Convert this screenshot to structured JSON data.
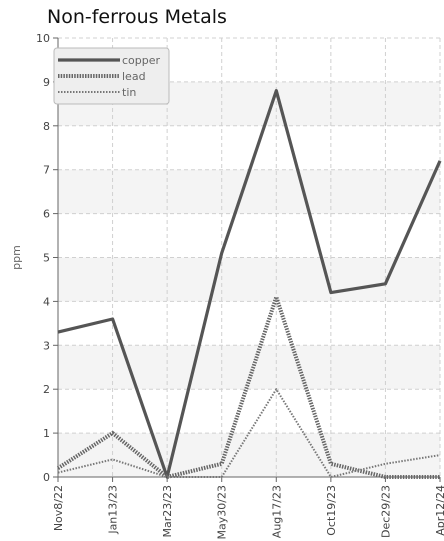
{
  "chart_data": {
    "type": "line",
    "title": "Non-ferrous Metals",
    "xlabel": "",
    "ylabel": "ppm",
    "ylim": [
      0,
      10
    ],
    "yticks": [
      0,
      1,
      2,
      3,
      4,
      5,
      6,
      7,
      8,
      9,
      10
    ],
    "categories": [
      "Nov8/22",
      "Jan13/23",
      "Mar23/23",
      "May30/23",
      "Aug17/23",
      "Oct19/23",
      "Dec29/23",
      "Apr12/24"
    ],
    "grid": true,
    "legend_position": "top-left",
    "series": [
      {
        "name": "copper",
        "values": [
          3.3,
          3.6,
          0.0,
          5.1,
          8.8,
          4.2,
          4.4,
          7.2
        ],
        "color": "#555555",
        "style": "solid"
      },
      {
        "name": "lead",
        "values": [
          0.2,
          1.0,
          0.0,
          0.3,
          4.1,
          0.3,
          0.0,
          0.0
        ],
        "color": "#666666",
        "style": "dotted-thick"
      },
      {
        "name": "tin",
        "values": [
          0.1,
          0.4,
          0.0,
          0.0,
          2.0,
          0.0,
          0.3,
          0.5
        ],
        "color": "#777777",
        "style": "dotted-thin"
      }
    ]
  }
}
